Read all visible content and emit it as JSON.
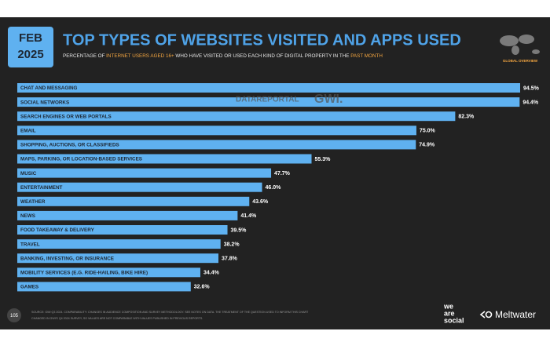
{
  "badge": {
    "month": "FEB",
    "year": "2025"
  },
  "chart_data": {
    "type": "bar",
    "orientation": "horizontal",
    "title": "TOP TYPES OF WEBSITES VISITED AND APPS USED",
    "subtitle": [
      "PERCENTAGE OF ",
      "INTERNET USERS AGED 16+",
      " WHO HAVE VISITED OR USED EACH KIND OF DIGITAL PROPERTY IN THE ",
      "PAST MONTH"
    ],
    "region": "GLOBAL OVERVIEW",
    "color": "#5fb1f0",
    "categories": [
      "CHAT AND MESSAGING",
      "SOCIAL NETWORKS",
      "SEARCH ENGINES OR WEB PORTALS",
      "EMAIL",
      "SHOPPING, AUCTIONS, OR CLASSIFIEDS",
      "MAPS, PARKING, OR LOCATION-BASED SERVICES",
      "MUSIC",
      "ENTERTAINMENT",
      "WEATHER",
      "NEWS",
      "FOOD TAKEAWAY & DELIVERY",
      "TRAVEL",
      "BANKING, INVESTING, OR INSURANCE",
      "MOBILITY SERVICES (E.G. RIDE-HAILING, BIKE HIRE)",
      "GAMES"
    ],
    "values": [
      94.5,
      94.4,
      82.3,
      75.0,
      74.9,
      55.3,
      47.7,
      46.0,
      43.6,
      41.4,
      39.5,
      38.2,
      37.8,
      34.4,
      32.6
    ],
    "value_labels": [
      "94.5%",
      "94.4%",
      "82.3%",
      "75.0%",
      "74.9%",
      "55.3%",
      "47.7%",
      "46.0%",
      "43.6%",
      "41.4%",
      "39.5%",
      "38.2%",
      "37.8%",
      "34.4%",
      "32.6%"
    ]
  },
  "watermark": [
    "DATAREPORTAL",
    "GWI."
  ],
  "footer": {
    "page": "105",
    "source": [
      "SOURCE: GWI Q3 2024. COMPARABILITY: CHANGES IN AUDIENCE COMPOSITION AND SURVEY METHODOLOGY. SEE NOTES ON DATA. THE TREATMENT OF THE QUESTION USED TO INFORM THIS CHART",
      "CHANGED IN GWI'S Q4 2024 SURVEY, SO VALUES ARE NOT COMPARABLE WITH VALUES PUBLISHED IN PREVIOUS REPORTS."
    ],
    "logos": [
      "we",
      "are",
      "social",
      "Meltwater"
    ]
  }
}
